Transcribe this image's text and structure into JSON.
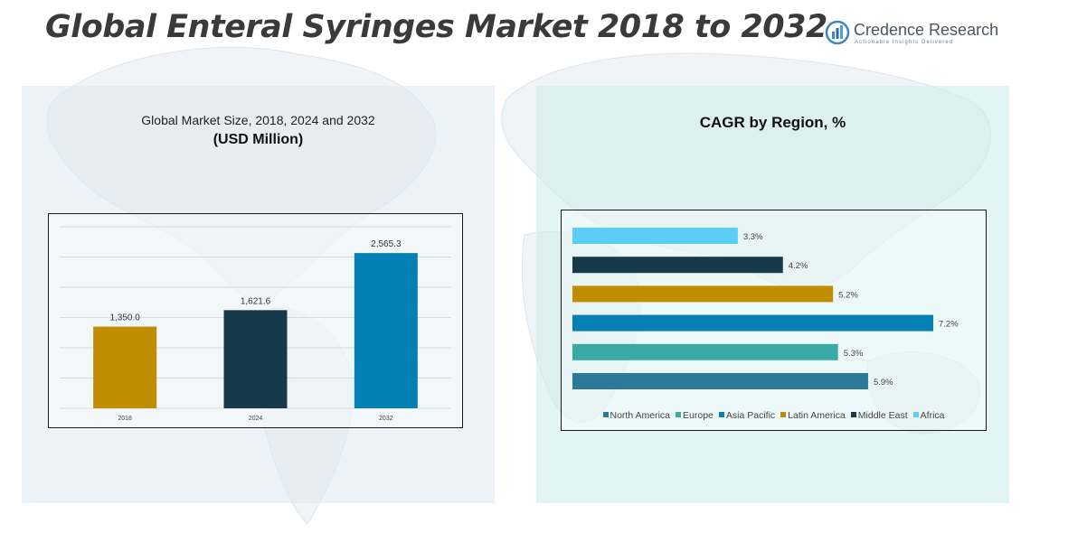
{
  "page": {
    "title": "Global Enteral Syringes Market 2018 to 2032"
  },
  "logo": {
    "name": "Credence Research",
    "tagline": "Actionable Insights Delivered"
  },
  "left_panel": {
    "title": "Global Market Size, 2018, 2024 and 2032",
    "subtitle": "(USD Million)"
  },
  "right_panel": {
    "title": "CAGR by Region, %"
  },
  "chart_data": [
    {
      "type": "bar",
      "title": "Global Market Size, 2018, 2024 and 2032",
      "subtitle": "(USD Million)",
      "categories": [
        "2018",
        "2024",
        "2032"
      ],
      "values": [
        1350.0,
        1621.6,
        2565.3
      ],
      "value_labels": [
        "1,350.0",
        "1,621.6",
        "2,565.3"
      ],
      "colors": [
        "#c08c00",
        "#173a4a",
        "#0580b4"
      ],
      "ylim": [
        0,
        3000
      ],
      "grid": true,
      "gridline_count": 6
    },
    {
      "type": "bar",
      "orientation": "horizontal",
      "title": "CAGR by Region, %",
      "unit": "%",
      "categories": [
        "Africa",
        "Middle East",
        "Latin America",
        "Asia Pacific",
        "Europe",
        "North America"
      ],
      "values": [
        3.3,
        4.2,
        5.2,
        7.2,
        5.3,
        5.9
      ],
      "value_labels": [
        "3.3%",
        "4.2%",
        "5.2%",
        "7.2%",
        "5.3%",
        "5.9%"
      ],
      "colors": [
        "#5ccdf5",
        "#173a4a",
        "#c08c00",
        "#0580b4",
        "#3aaaa6",
        "#2b7a9a"
      ],
      "xlim": [
        0,
        7.2
      ],
      "legend": {
        "position": "bottom",
        "entries": [
          {
            "name": "North America",
            "color": "#2b7a9a"
          },
          {
            "name": "Europe",
            "color": "#3aaaa6"
          },
          {
            "name": "Asia Pacific",
            "color": "#0580b4"
          },
          {
            "name": "Latin America",
            "color": "#c08c00"
          },
          {
            "name": "Middle East",
            "color": "#173a4a"
          },
          {
            "name": "Africa",
            "color": "#5ccdf5"
          }
        ]
      }
    }
  ]
}
